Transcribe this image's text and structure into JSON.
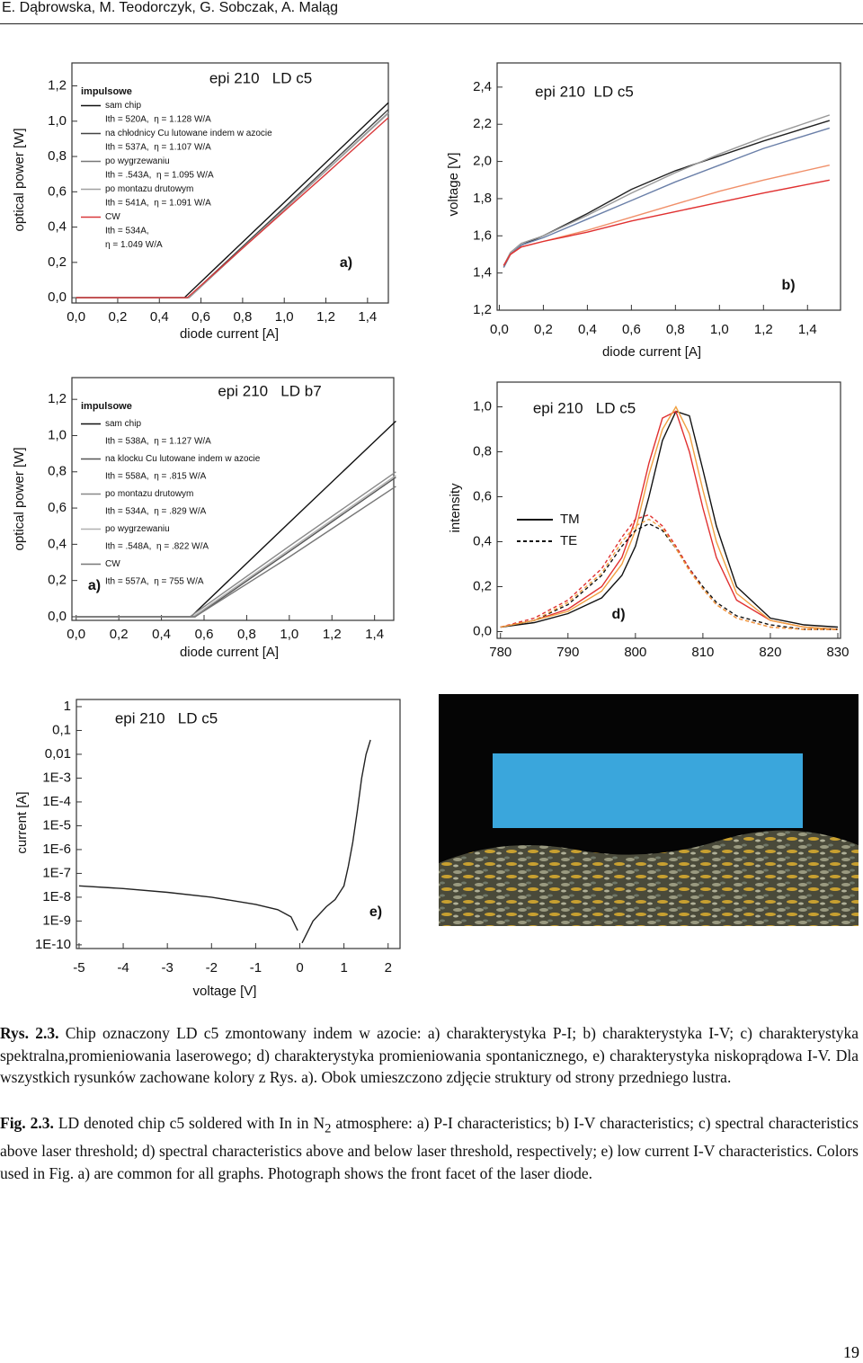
{
  "header": "E. Dąbrowska, M. Teodorczyk, G. Sobczak, A. Maląg",
  "chart_data": [
    {
      "type": "line",
      "title": "epi 210   LD c5",
      "panel_label": "a)",
      "xlabel": "diode current [A]",
      "ylabel": "optical power [W]",
      "xlim": [
        -0.02,
        1.5
      ],
      "ylim": [
        -0.03,
        1.33
      ],
      "xticks": [
        {
          "value": 0,
          "label": "0,0"
        },
        {
          "value": 0.2,
          "label": "0,2"
        },
        {
          "value": 0.4,
          "label": "0,4"
        },
        {
          "value": 0.6,
          "label": "0,6"
        },
        {
          "value": 0.8,
          "label": "0,8"
        },
        {
          "value": 1.0,
          "label": "1,0"
        },
        {
          "value": 1.2,
          "label": "1,2"
        },
        {
          "value": 1.4,
          "label": "1,4"
        }
      ],
      "yticks": [
        {
          "value": 0,
          "label": "0,0"
        },
        {
          "value": 0.2,
          "label": "0,2"
        },
        {
          "value": 0.4,
          "label": "0,4"
        },
        {
          "value": 0.6,
          "label": "0,6"
        },
        {
          "value": 0.8,
          "label": "0,8"
        },
        {
          "value": 1.0,
          "label": "1,0"
        },
        {
          "value": 1.2,
          "label": "1,2"
        }
      ],
      "legend_title": "impulsowe",
      "series": [
        {
          "name": "sam chip",
          "info": [
            "Ith = 520A,  η = 1.128 W/A"
          ],
          "color": "#111111",
          "x": [
            0,
            0.45,
            0.52,
            1.0,
            1.5
          ],
          "values": [
            0,
            0,
            0,
            0.54,
            1.105
          ]
        },
        {
          "name": "na chłodnicy Cu lutowane indem w azocie",
          "info": [
            "Ith = 537A,  η = 1.107 W/A"
          ],
          "color": "#444444",
          "x": [
            0,
            0.45,
            0.537,
            1.0,
            1.5
          ],
          "values": [
            0,
            0,
            0,
            0.51,
            1.066
          ]
        },
        {
          "name": "po wygrzewaniu",
          "info": [
            "Ith = .543A,  η = 1.095 W/A"
          ],
          "color": "#777777",
          "x": [
            0,
            0.45,
            0.543,
            1.0,
            1.5
          ],
          "values": [
            0,
            0,
            0,
            0.5,
            1.048
          ]
        },
        {
          "name": "po montazu drutowym",
          "info": [
            "Ith = 541A,  η = 1.091 W/A"
          ],
          "color": "#a0a0a0",
          "x": [
            0,
            0.45,
            0.541,
            1.0,
            1.5
          ],
          "values": [
            0,
            0,
            0,
            0.5,
            1.044
          ]
        },
        {
          "name": "CW",
          "info": [
            "Ith = 534A,",
            "η = 1.049 W/A"
          ],
          "color": "#d9383a",
          "x": [
            0,
            0.45,
            0.534,
            0.8,
            1.0,
            1.2,
            1.5
          ],
          "values": [
            0,
            0,
            0,
            0.28,
            0.49,
            0.7,
            1.02
          ]
        }
      ]
    },
    {
      "type": "line",
      "title": "epi 210  LD c5",
      "panel_label": "b)",
      "xlabel": "diode current [A]",
      "ylabel": "voltage [V]",
      "xlim": [
        -0.01,
        1.55
      ],
      "ylim": [
        1.2,
        2.53
      ],
      "xticks": [
        {
          "value": 0,
          "label": "0,0"
        },
        {
          "value": 0.2,
          "label": "0,2"
        },
        {
          "value": 0.4,
          "label": "0,4"
        },
        {
          "value": 0.6,
          "label": "0,6"
        },
        {
          "value": 0.8,
          "label": "0,8"
        },
        {
          "value": 1.0,
          "label": "1,0"
        },
        {
          "value": 1.2,
          "label": "1,2"
        },
        {
          "value": 1.4,
          "label": "1,4"
        }
      ],
      "yticks": [
        {
          "value": 1.2,
          "label": "1,2"
        },
        {
          "value": 1.4,
          "label": "1,4"
        },
        {
          "value": 1.6,
          "label": "1,6"
        },
        {
          "value": 1.8,
          "label": "1,8"
        },
        {
          "value": 2.0,
          "label": "2,0"
        },
        {
          "value": 2.2,
          "label": "2,2"
        },
        {
          "value": 2.4,
          "label": "2,4"
        }
      ],
      "series": [
        {
          "color": "#222222",
          "x": [
            0.02,
            0.05,
            0.1,
            0.2,
            0.4,
            0.6,
            0.8,
            1.0,
            1.2,
            1.5
          ],
          "values": [
            1.43,
            1.5,
            1.55,
            1.6,
            1.72,
            1.85,
            1.95,
            2.03,
            2.11,
            2.22
          ]
        },
        {
          "color": "#999999",
          "x": [
            0.02,
            0.05,
            0.1,
            0.2,
            0.4,
            0.6,
            0.8,
            1.0,
            1.2,
            1.5
          ],
          "values": [
            1.44,
            1.51,
            1.56,
            1.6,
            1.71,
            1.83,
            1.94,
            2.04,
            2.13,
            2.25
          ]
        },
        {
          "color": "#6a7fa8",
          "x": [
            0.02,
            0.05,
            0.1,
            0.2,
            0.4,
            0.6,
            0.8,
            1.0,
            1.2,
            1.5
          ],
          "values": [
            1.43,
            1.5,
            1.55,
            1.59,
            1.69,
            1.79,
            1.89,
            1.98,
            2.07,
            2.18
          ]
        },
        {
          "color": "#f0906a",
          "x": [
            0.02,
            0.05,
            0.1,
            0.2,
            0.4,
            0.6,
            0.8,
            1.0,
            1.2,
            1.5
          ],
          "values": [
            1.44,
            1.5,
            1.54,
            1.57,
            1.63,
            1.7,
            1.77,
            1.84,
            1.9,
            1.98
          ]
        },
        {
          "color": "#e03030",
          "x": [
            0.02,
            0.05,
            0.1,
            0.2,
            0.4,
            0.6,
            0.8,
            1.0,
            1.2,
            1.5
          ],
          "values": [
            1.44,
            1.5,
            1.54,
            1.57,
            1.62,
            1.68,
            1.73,
            1.78,
            1.83,
            1.9
          ]
        }
      ]
    },
    {
      "type": "line",
      "title": "epi 210   LD b7",
      "panel_label": "a)",
      "xlabel": "diode current [A]",
      "ylabel": "optical power [W]",
      "xlim": [
        -0.02,
        1.49
      ],
      "ylim": [
        -0.02,
        1.32
      ],
      "xticks": [
        {
          "value": 0,
          "label": "0,0"
        },
        {
          "value": 0.2,
          "label": "0,2"
        },
        {
          "value": 0.4,
          "label": "0,4"
        },
        {
          "value": 0.6,
          "label": "0,6"
        },
        {
          "value": 0.8,
          "label": "0,8"
        },
        {
          "value": 1.0,
          "label": "1,0"
        },
        {
          "value": 1.2,
          "label": "1,2"
        },
        {
          "value": 1.4,
          "label": "1,4"
        }
      ],
      "yticks": [
        {
          "value": 0,
          "label": "0,0"
        },
        {
          "value": 0.2,
          "label": "0,2"
        },
        {
          "value": 0.4,
          "label": "0,4"
        },
        {
          "value": 0.6,
          "label": "0,6"
        },
        {
          "value": 0.8,
          "label": "0,8"
        },
        {
          "value": 1.0,
          "label": "1,0"
        },
        {
          "value": 1.2,
          "label": "1,2"
        }
      ],
      "legend_title": "impulsowe",
      "series": [
        {
          "name": "sam chip",
          "info": [
            "Ith = 538A,  η = 1.127 W/A"
          ],
          "color": "#111111",
          "x": [
            0,
            0.45,
            0.538,
            1.0,
            1.5
          ],
          "values": [
            0,
            0,
            0,
            0.52,
            1.08
          ]
        },
        {
          "name": "na klocku Cu lutowane indem w azocie",
          "info": [
            "Ith = 558A,  η = .815 W/A"
          ],
          "color": "#555555",
          "x": [
            0,
            0.45,
            0.558,
            1.0,
            1.5
          ],
          "values": [
            0,
            0,
            0,
            0.36,
            0.77
          ]
        },
        {
          "name": "po montazu drutowym",
          "info": [
            "Ith = 534A,  η = .829 W/A"
          ],
          "color": "#888888",
          "x": [
            0,
            0.45,
            0.534,
            1.0,
            1.5
          ],
          "values": [
            0,
            0,
            0,
            0.39,
            0.8
          ]
        },
        {
          "name": "po wygrzewaniu",
          "info": [
            "Ith = .548A,  η = .822 W/A"
          ],
          "color": "#b0b0b0",
          "x": [
            0,
            0.45,
            0.548,
            1.0,
            1.5
          ],
          "values": [
            0,
            0,
            0,
            0.37,
            0.78
          ]
        },
        {
          "name": "CW",
          "info": [
            "Ith = 557A,  η = 755 W/A"
          ],
          "color": "#777777",
          "x": [
            0,
            0.45,
            0.557,
            1.0,
            1.5
          ],
          "values": [
            0,
            0,
            0,
            0.33,
            0.72
          ]
        }
      ]
    },
    {
      "type": "line",
      "title": "epi 210   LD c5",
      "panel_label": "d)",
      "ylabel": "intensity",
      "xlim": [
        779.5,
        830.4
      ],
      "ylim": [
        -0.03,
        1.11
      ],
      "xticks": [
        780,
        790,
        800,
        810,
        820,
        830
      ],
      "yticks": [
        {
          "value": 0,
          "label": "0,0"
        },
        {
          "value": 0.2,
          "label": "0,2"
        },
        {
          "value": 0.4,
          "label": "0,4"
        },
        {
          "value": 0.6,
          "label": "0,6"
        },
        {
          "value": 0.8,
          "label": "0,8"
        },
        {
          "value": 1.0,
          "label": "1,0"
        }
      ],
      "legend": [
        {
          "name": "TM",
          "dash": false
        },
        {
          "name": "TE",
          "dash": true
        }
      ],
      "x": [
        780,
        785,
        790,
        795,
        798,
        800,
        802,
        804,
        806,
        808,
        810,
        812,
        815,
        820,
        825,
        830
      ],
      "series": [
        {
          "color": "#111111",
          "dash": false,
          "values": [
            0.02,
            0.04,
            0.08,
            0.15,
            0.25,
            0.38,
            0.6,
            0.85,
            0.98,
            0.96,
            0.72,
            0.47,
            0.2,
            0.06,
            0.03,
            0.02
          ]
        },
        {
          "color": "#e03030",
          "dash": false,
          "values": [
            0.02,
            0.05,
            0.1,
            0.2,
            0.33,
            0.5,
            0.75,
            0.95,
            0.98,
            0.8,
            0.55,
            0.33,
            0.14,
            0.05,
            0.02,
            0.01
          ]
        },
        {
          "color": "#f0a040",
          "dash": false,
          "values": [
            0.02,
            0.05,
            0.09,
            0.18,
            0.3,
            0.45,
            0.7,
            0.9,
            1.0,
            0.88,
            0.63,
            0.4,
            0.17,
            0.05,
            0.02,
            0.01
          ]
        },
        {
          "color": "#111111",
          "dash": true,
          "values": [
            0.02,
            0.05,
            0.12,
            0.25,
            0.38,
            0.45,
            0.48,
            0.45,
            0.37,
            0.28,
            0.2,
            0.13,
            0.07,
            0.03,
            0.01,
            0.01
          ]
        },
        {
          "color": "#e03030",
          "dash": true,
          "values": [
            0.02,
            0.06,
            0.14,
            0.28,
            0.42,
            0.5,
            0.52,
            0.47,
            0.38,
            0.28,
            0.19,
            0.12,
            0.06,
            0.02,
            0.01,
            0.01
          ]
        },
        {
          "color": "#f0a040",
          "dash": true,
          "values": [
            0.02,
            0.05,
            0.13,
            0.26,
            0.4,
            0.47,
            0.5,
            0.46,
            0.37,
            0.27,
            0.19,
            0.12,
            0.06,
            0.02,
            0.01,
            0.01
          ]
        }
      ]
    },
    {
      "type": "line",
      "title": "epi 210   LD c5",
      "panel_label": "e)",
      "xlabel": "voltage [V]",
      "ylabel": "current [A]",
      "ylog": true,
      "xlim": [
        -5.06,
        2.27
      ],
      "ylim": [
        7e-11,
        2
      ],
      "xticks": [
        -5,
        -4,
        -3,
        -2,
        -1,
        0,
        1,
        2
      ],
      "yticks": [
        1,
        {
          "value": 0.1,
          "label": "0,1"
        },
        {
          "value": 0.01,
          "label": "0,01"
        },
        {
          "value": 0.001,
          "label": "1E-3"
        },
        {
          "value": 0.0001,
          "label": "1E-4"
        },
        {
          "value": 1e-05,
          "label": "1E-5"
        },
        {
          "value": 1e-06,
          "label": "1E-6"
        },
        {
          "value": 1e-07,
          "label": "1E-7"
        },
        {
          "value": 1e-08,
          "label": "1E-8"
        },
        {
          "value": 1e-09,
          "label": "1E-9"
        },
        {
          "value": 1e-10,
          "label": "1E-10"
        }
      ],
      "x": [
        -5,
        -4,
        -3,
        -2,
        -1,
        -0.5,
        -0.2,
        -0.05,
        0,
        0.05,
        0.3,
        0.6,
        0.8,
        1.0,
        1.1,
        1.2,
        1.3,
        1.4,
        1.5,
        1.6
      ],
      "series": [
        {
          "color": "#222222",
          "values": [
            3e-08,
            2.3e-08,
            1.6e-08,
            1e-08,
            5e-09,
            3e-09,
            1.5e-09,
            4e-10,
            null,
            1.2e-10,
            1e-09,
            4e-09,
            8e-09,
            3e-08,
            2e-07,
            2e-06,
            4e-05,
            0.001,
            0.01,
            0.04
          ]
        }
      ]
    }
  ],
  "caption_pl": {
    "label": "Rys. 2.3.",
    "text": " Chip oznaczony LD c5 zmontowany indem w azocie: a) charakterystyka P-I; b) charakterystyka I-V; c) charakterystyka spektralna,promieniowania laserowego; d) charakterystyka promieniowania spontanicznego, e) charakterystyka niskoprądowa I-V. Dla wszystkich rysunków zachowane kolory z Rys. a). Obok umieszczono zdjęcie struktury od strony przedniego lustra."
  },
  "caption_en": {
    "label": "Fig. 2.3.",
    "text_before": " LD denoted chip c5 soldered with In in N",
    "subscript": "2",
    "text_after": " atmosphere: a) P-I characteristics; b) I-V characteristics; c) spectral characteristics above laser threshold; d) spectral characteristics above and below laser threshold, respectively; e) low current I-V characteristics. Colors used in Fig. a) are common for all graphs. Photograph shows the front facet of the laser diode."
  },
  "page_number": "19"
}
